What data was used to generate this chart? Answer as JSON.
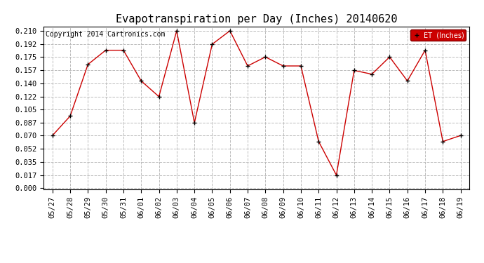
{
  "title": "Evapotranspiration per Day (Inches) 20140620",
  "copyright_text": "Copyright 2014 Cartronics.com",
  "legend_label": "ET  (Inches)",
  "dates": [
    "05/27",
    "05/28",
    "05/29",
    "05/30",
    "05/31",
    "06/01",
    "06/02",
    "06/03",
    "06/04",
    "06/05",
    "06/06",
    "06/07",
    "06/08",
    "06/09",
    "06/10",
    "06/11",
    "06/12",
    "06/13",
    "06/14",
    "06/15",
    "06/16",
    "06/17",
    "06/18",
    "06/19"
  ],
  "values": [
    0.07,
    0.096,
    0.165,
    0.184,
    0.184,
    0.143,
    0.122,
    0.21,
    0.087,
    0.192,
    0.21,
    0.163,
    0.175,
    0.163,
    0.163,
    0.062,
    0.017,
    0.157,
    0.152,
    0.175,
    0.143,
    0.184,
    0.062,
    0.07
  ],
  "yticks": [
    0.0,
    0.017,
    0.035,
    0.052,
    0.07,
    0.087,
    0.105,
    0.122,
    0.14,
    0.157,
    0.175,
    0.192,
    0.21
  ],
  "line_color": "#cc0000",
  "marker_color": "#000000",
  "background_color": "#ffffff",
  "grid_color": "#bbbbbb",
  "legend_bg": "#cc0000",
  "legend_text_color": "#ffffff",
  "title_fontsize": 11,
  "copyright_fontsize": 7,
  "axis_fontsize": 7.5,
  "ylim": [
    -0.002,
    0.216
  ]
}
